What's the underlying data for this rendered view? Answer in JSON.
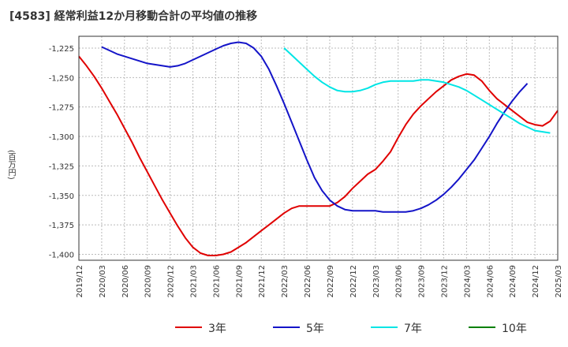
{
  "title": "[4583]  経常利益12か月移動合計の平均値の推移",
  "chart_data": {
    "type": "line",
    "ylabel": "(百万円)",
    "ylim": [
      -1405,
      -1215
    ],
    "yticks": [
      -1225,
      -1250,
      -1275,
      -1300,
      -1325,
      -1350,
      -1375,
      -1400
    ],
    "ytick_labels": [
      "-1,225",
      "-1,250",
      "-1,275",
      "-1,300",
      "-1,325",
      "-1,350",
      "-1,375",
      "-1,400"
    ],
    "xticks": [
      "2019/12",
      "2020/03",
      "2020/06",
      "2020/09",
      "2020/12",
      "2021/03",
      "2021/06",
      "2021/09",
      "2021/12",
      "2022/03",
      "2022/06",
      "2022/09",
      "2022/12",
      "2023/03",
      "2023/06",
      "2023/09",
      "2023/12",
      "2024/03",
      "2024/06",
      "2024/09",
      "2024/12",
      "2025/03"
    ],
    "grid": true,
    "legend_position": "bottom",
    "series": [
      {
        "name": "3年",
        "color": "#e00000",
        "points": [
          [
            "2019/12",
            -1232
          ],
          [
            "2020/01",
            -1240
          ],
          [
            "2020/02",
            -1249
          ],
          [
            "2020/03",
            -1259
          ],
          [
            "2020/04",
            -1270
          ],
          [
            "2020/05",
            -1281
          ],
          [
            "2020/06",
            -1293
          ],
          [
            "2020/07",
            -1305
          ],
          [
            "2020/08",
            -1318
          ],
          [
            "2020/09",
            -1330
          ],
          [
            "2020/10",
            -1342
          ],
          [
            "2020/11",
            -1354
          ],
          [
            "2020/12",
            -1365
          ],
          [
            "2021/01",
            -1376
          ],
          [
            "2021/02",
            -1386
          ],
          [
            "2021/03",
            -1394
          ],
          [
            "2021/04",
            -1399
          ],
          [
            "2021/05",
            -1401
          ],
          [
            "2021/06",
            -1401
          ],
          [
            "2021/07",
            -1400
          ],
          [
            "2021/08",
            -1398
          ],
          [
            "2021/09",
            -1394
          ],
          [
            "2021/10",
            -1390
          ],
          [
            "2021/11",
            -1385
          ],
          [
            "2021/12",
            -1380
          ],
          [
            "2022/01",
            -1375
          ],
          [
            "2022/02",
            -1370
          ],
          [
            "2022/03",
            -1365
          ],
          [
            "2022/04",
            -1361
          ],
          [
            "2022/05",
            -1359
          ],
          [
            "2022/06",
            -1359
          ],
          [
            "2022/07",
            -1359
          ],
          [
            "2022/08",
            -1359
          ],
          [
            "2022/09",
            -1359
          ],
          [
            "2022/10",
            -1356
          ],
          [
            "2022/11",
            -1351
          ],
          [
            "2022/12",
            -1344
          ],
          [
            "2023/01",
            -1338
          ],
          [
            "2023/02",
            -1332
          ],
          [
            "2023/03",
            -1328
          ],
          [
            "2023/04",
            -1321
          ],
          [
            "2023/05",
            -1313
          ],
          [
            "2023/06",
            -1301
          ],
          [
            "2023/07",
            -1290
          ],
          [
            "2023/08",
            -1281
          ],
          [
            "2023/09",
            -1274
          ],
          [
            "2023/10",
            -1268
          ],
          [
            "2023/11",
            -1262
          ],
          [
            "2023/12",
            -1257
          ],
          [
            "2024/01",
            -1252
          ],
          [
            "2024/02",
            -1249
          ],
          [
            "2024/03",
            -1247
          ],
          [
            "2024/04",
            -1248
          ],
          [
            "2024/05",
            -1253
          ],
          [
            "2024/06",
            -1261
          ],
          [
            "2024/07",
            -1268
          ],
          [
            "2024/08",
            -1273
          ],
          [
            "2024/09",
            -1278
          ],
          [
            "2024/10",
            -1283
          ],
          [
            "2024/11",
            -1288
          ],
          [
            "2024/12",
            -1290
          ],
          [
            "2025/01",
            -1291
          ],
          [
            "2025/02",
            -1287
          ],
          [
            "2025/03",
            -1278
          ]
        ]
      },
      {
        "name": "5年",
        "color": "#1414c8",
        "points": [
          [
            "2020/03",
            -1224
          ],
          [
            "2020/04",
            -1227
          ],
          [
            "2020/05",
            -1230
          ],
          [
            "2020/06",
            -1232
          ],
          [
            "2020/07",
            -1234
          ],
          [
            "2020/08",
            -1236
          ],
          [
            "2020/09",
            -1238
          ],
          [
            "2020/10",
            -1239
          ],
          [
            "2020/11",
            -1240
          ],
          [
            "2020/12",
            -1241
          ],
          [
            "2021/01",
            -1240
          ],
          [
            "2021/02",
            -1238
          ],
          [
            "2021/03",
            -1235
          ],
          [
            "2021/04",
            -1232
          ],
          [
            "2021/05",
            -1229
          ],
          [
            "2021/06",
            -1226
          ],
          [
            "2021/07",
            -1223
          ],
          [
            "2021/08",
            -1221
          ],
          [
            "2021/09",
            -1220
          ],
          [
            "2021/10",
            -1221
          ],
          [
            "2021/11",
            -1225
          ],
          [
            "2021/12",
            -1232
          ],
          [
            "2022/01",
            -1243
          ],
          [
            "2022/02",
            -1257
          ],
          [
            "2022/03",
            -1272
          ],
          [
            "2022/04",
            -1288
          ],
          [
            "2022/05",
            -1304
          ],
          [
            "2022/06",
            -1320
          ],
          [
            "2022/07",
            -1335
          ],
          [
            "2022/08",
            -1346
          ],
          [
            "2022/09",
            -1354
          ],
          [
            "2022/10",
            -1359
          ],
          [
            "2022/11",
            -1362
          ],
          [
            "2022/12",
            -1363
          ],
          [
            "2023/01",
            -1363
          ],
          [
            "2023/02",
            -1363
          ],
          [
            "2023/03",
            -1363
          ],
          [
            "2023/04",
            -1364
          ],
          [
            "2023/05",
            -1364
          ],
          [
            "2023/06",
            -1364
          ],
          [
            "2023/07",
            -1364
          ],
          [
            "2023/08",
            -1363
          ],
          [
            "2023/09",
            -1361
          ],
          [
            "2023/10",
            -1358
          ],
          [
            "2023/11",
            -1354
          ],
          [
            "2023/12",
            -1349
          ],
          [
            "2024/01",
            -1343
          ],
          [
            "2024/02",
            -1336
          ],
          [
            "2024/03",
            -1328
          ],
          [
            "2024/04",
            -1320
          ],
          [
            "2024/05",
            -1310
          ],
          [
            "2024/06",
            -1300
          ],
          [
            "2024/07",
            -1289
          ],
          [
            "2024/08",
            -1279
          ],
          [
            "2024/09",
            -1270
          ],
          [
            "2024/10",
            -1262
          ],
          [
            "2024/11",
            -1255
          ]
        ]
      },
      {
        "name": "7年",
        "color": "#00e5e5",
        "points": [
          [
            "2022/03",
            -1225
          ],
          [
            "2022/04",
            -1231
          ],
          [
            "2022/05",
            -1237
          ],
          [
            "2022/06",
            -1243
          ],
          [
            "2022/07",
            -1249
          ],
          [
            "2022/08",
            -1254
          ],
          [
            "2022/09",
            -1258
          ],
          [
            "2022/10",
            -1261
          ],
          [
            "2022/11",
            -1262
          ],
          [
            "2022/12",
            -1262
          ],
          [
            "2023/01",
            -1261
          ],
          [
            "2023/02",
            -1259
          ],
          [
            "2023/03",
            -1256
          ],
          [
            "2023/04",
            -1254
          ],
          [
            "2023/05",
            -1253
          ],
          [
            "2023/06",
            -1253
          ],
          [
            "2023/07",
            -1253
          ],
          [
            "2023/08",
            -1253
          ],
          [
            "2023/09",
            -1252
          ],
          [
            "2023/10",
            -1252
          ],
          [
            "2023/11",
            -1253
          ],
          [
            "2023/12",
            -1254
          ],
          [
            "2024/01",
            -1256
          ],
          [
            "2024/02",
            -1258
          ],
          [
            "2024/03",
            -1261
          ],
          [
            "2024/04",
            -1265
          ],
          [
            "2024/05",
            -1269
          ],
          [
            "2024/06",
            -1273
          ],
          [
            "2024/07",
            -1277
          ],
          [
            "2024/08",
            -1281
          ],
          [
            "2024/09",
            -1285
          ],
          [
            "2024/10",
            -1289
          ],
          [
            "2024/11",
            -1292
          ],
          [
            "2024/12",
            -1295
          ],
          [
            "2025/01",
            -1296
          ],
          [
            "2025/02",
            -1297
          ]
        ]
      },
      {
        "name": "10年",
        "color": "#008000",
        "points": []
      }
    ]
  }
}
